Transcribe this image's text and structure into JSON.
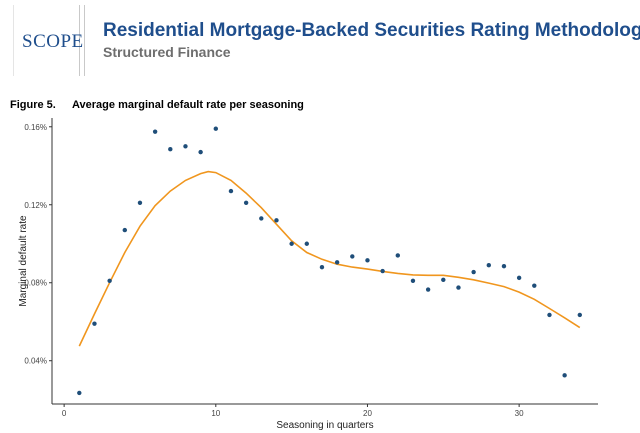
{
  "header": {
    "logo_text": "SCOPE",
    "title": "Residential Mortgage-Backed Securities Rating Methodology",
    "subtitle": "Structured Finance"
  },
  "figure": {
    "number": "Figure 5.",
    "caption": "Average marginal default rate per seasoning"
  },
  "colors": {
    "brand_blue": "#1f4e8c",
    "point": "#1f4e79",
    "smooth": "#f0961e"
  },
  "chart_data": {
    "type": "scatter",
    "xlabel": "Seasoning in quarters",
    "ylabel": "Marginal default rate",
    "xlim": [
      -0.8,
      35.2
    ],
    "ylim": [
      0.0178,
      0.1645
    ],
    "x_ticks": [
      0,
      10,
      20,
      30
    ],
    "x_tick_labels": [
      "0",
      "10",
      "20",
      "30"
    ],
    "y_ticks": [
      0.04,
      0.08,
      0.12,
      0.16
    ],
    "y_tick_labels": [
      "0.04%",
      "0.08%",
      "0.12%",
      "0.16%"
    ],
    "grid": false,
    "points": {
      "x": [
        1,
        2,
        3,
        4,
        5,
        6,
        7,
        8,
        9,
        10,
        11,
        12,
        13,
        14,
        15,
        16,
        17,
        18,
        19,
        20,
        21,
        22,
        23,
        24,
        25,
        26,
        27,
        28,
        29,
        30,
        31,
        32,
        33,
        34
      ],
      "y": [
        0.0235,
        0.059,
        0.081,
        0.107,
        0.121,
        0.1575,
        0.1485,
        0.15,
        0.147,
        0.159,
        0.127,
        0.121,
        0.113,
        0.112,
        0.1,
        0.1,
        0.088,
        0.0905,
        0.0935,
        0.0915,
        0.086,
        0.094,
        0.081,
        0.0765,
        0.0815,
        0.0775,
        0.0855,
        0.089,
        0.0885,
        0.0825,
        0.0785,
        0.0635,
        0.0325,
        0.0635
      ]
    },
    "smooth_line": {
      "x": [
        1,
        2,
        3,
        4,
        5,
        6,
        7,
        8,
        9,
        9.5,
        10,
        11,
        12,
        13,
        14,
        15,
        16,
        17,
        18,
        19,
        20,
        21,
        22,
        23,
        24,
        25,
        26,
        27,
        28,
        29,
        30,
        31,
        32,
        33,
        34
      ],
      "y": [
        0.0475,
        0.064,
        0.08,
        0.0955,
        0.109,
        0.1195,
        0.127,
        0.1325,
        0.136,
        0.137,
        0.1365,
        0.1325,
        0.126,
        0.1185,
        0.11,
        0.1015,
        0.0955,
        0.092,
        0.0895,
        0.088,
        0.087,
        0.0858,
        0.0848,
        0.084,
        0.0838,
        0.0838,
        0.0828,
        0.0815,
        0.0798,
        0.078,
        0.0752,
        0.0715,
        0.0668,
        0.062,
        0.057
      ]
    }
  }
}
